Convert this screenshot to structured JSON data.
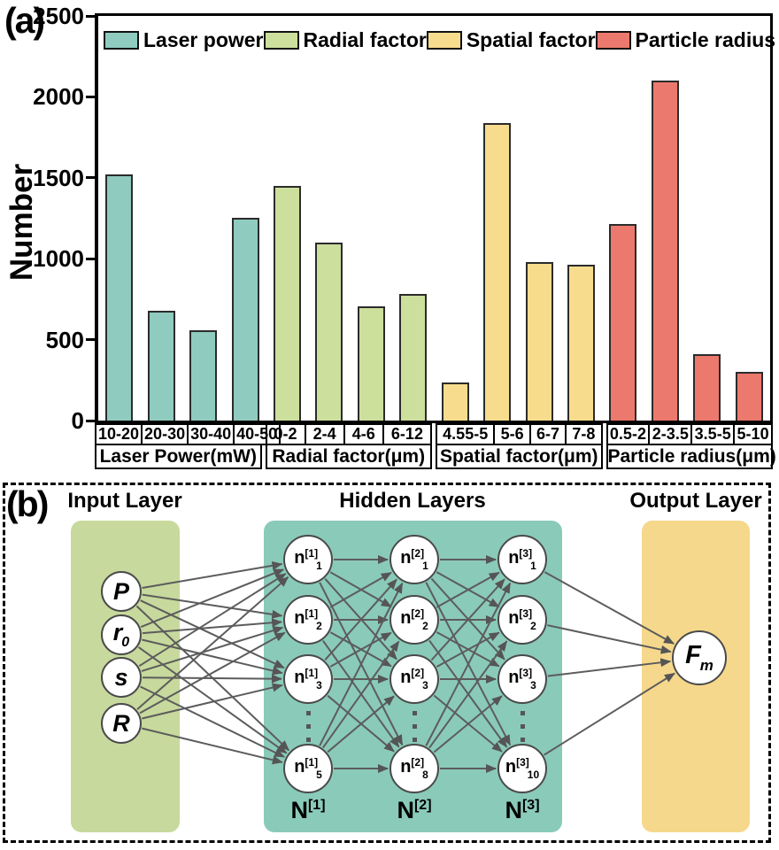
{
  "figure": {
    "panel_a_label": "(a)",
    "panel_b_label": "(b)"
  },
  "chart_data": {
    "type": "bar",
    "title": "",
    "ylabel": "Number",
    "ylim": [
      0,
      2500
    ],
    "yticks": [
      0,
      500,
      1000,
      1500,
      2000,
      2500
    ],
    "legend_position": "top-inside",
    "grid": false,
    "groups": [
      {
        "name": "Laser power",
        "color": "#8FCBBE",
        "axis_label": "Laser Power(mW)",
        "bins": [
          "10-20",
          "20-30",
          "30-40",
          "40-50"
        ],
        "values": [
          1520,
          680,
          560,
          1250
        ]
      },
      {
        "name": "Radial factor",
        "color": "#CDDF9D",
        "axis_label": "Radial factor(μm)",
        "bins": [
          "0-2",
          "2-4",
          "4-6",
          "6-12"
        ],
        "values": [
          1450,
          1100,
          705,
          780
        ]
      },
      {
        "name": "Spatial factor",
        "color": "#F8DC8E",
        "axis_label": "Spatial factor(μm)",
        "bins": [
          "4.55-5",
          "5-6",
          "6-7",
          "7-8"
        ],
        "values": [
          235,
          1840,
          980,
          965
        ]
      },
      {
        "name": "Particle radius",
        "color": "#EC796D",
        "axis_label": "Particle radius(μm)",
        "bins": [
          "0.5-2",
          "2-3.5",
          "3.5-5",
          "5-10"
        ],
        "values": [
          1215,
          2100,
          410,
          300
        ]
      }
    ]
  },
  "network": {
    "headings": {
      "input": "Input Layer",
      "hidden": "Hidden Layers",
      "output": "Output Layer"
    },
    "colors": {
      "input_box": "#C7D99D",
      "hidden_box": "#8ACAB9",
      "output_box": "#F6D88C"
    },
    "input_nodes": [
      {
        "base": "P",
        "sup": "",
        "sub": ""
      },
      {
        "base": "r",
        "sup": "",
        "sub": "0"
      },
      {
        "base": "s",
        "sup": "",
        "sub": ""
      },
      {
        "base": "R",
        "sup": "",
        "sub": ""
      }
    ],
    "hidden_columns": [
      {
        "label": {
          "base": "N",
          "sup": "[1]"
        },
        "nodes": [
          {
            "base": "n",
            "sup": "[1]",
            "sub": "1"
          },
          {
            "base": "n",
            "sup": "[1]",
            "sub": "2"
          },
          {
            "base": "n",
            "sup": "[1]",
            "sub": "3"
          },
          {
            "base": "n",
            "sup": "[1]",
            "sub": "5"
          }
        ]
      },
      {
        "label": {
          "base": "N",
          "sup": "[2]"
        },
        "nodes": [
          {
            "base": "n",
            "sup": "[2]",
            "sub": "1"
          },
          {
            "base": "n",
            "sup": "[2]",
            "sub": "2"
          },
          {
            "base": "n",
            "sup": "[2]",
            "sub": "3"
          },
          {
            "base": "n",
            "sup": "[2]",
            "sub": "8"
          }
        ]
      },
      {
        "label": {
          "base": "N",
          "sup": "[3]"
        },
        "nodes": [
          {
            "base": "n",
            "sup": "[3]",
            "sub": "1"
          },
          {
            "base": "n",
            "sup": "[3]",
            "sub": "2"
          },
          {
            "base": "n",
            "sup": "[3]",
            "sub": "3"
          },
          {
            "base": "n",
            "sup": "[3]",
            "sub": "10"
          }
        ]
      }
    ],
    "output_node": {
      "base": "F",
      "sup": "",
      "sub": "m"
    }
  }
}
